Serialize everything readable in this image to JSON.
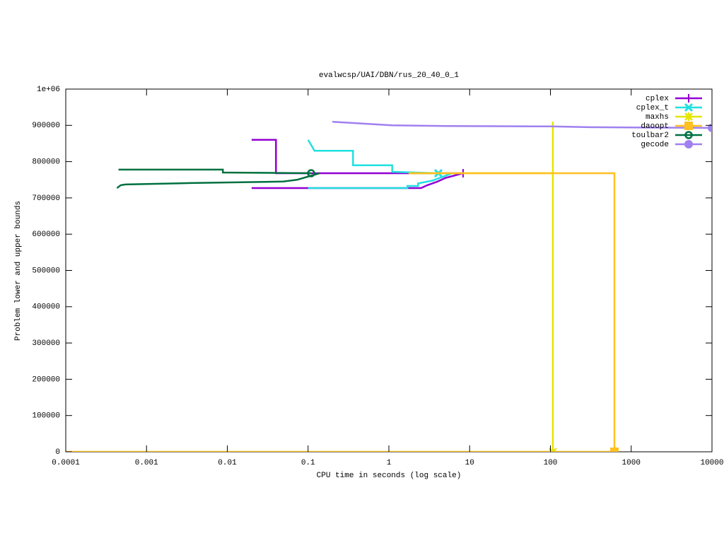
{
  "chart_data": {
    "type": "line",
    "title": "evalwcsp/UAI/DBN/rus_20_40_0_1",
    "x_label": "CPU time in seconds (log scale)",
    "y_label": "Problem lower and upper bounds",
    "xscale": "log",
    "xlim": [
      0.0001,
      10000
    ],
    "xticks": [
      0.0001,
      0.001,
      0.01,
      0.1,
      1,
      10,
      100,
      1000,
      10000
    ],
    "ylim": [
      0,
      1000000
    ],
    "yticks": [
      0,
      100000,
      200000,
      300000,
      400000,
      500000,
      600000,
      700000,
      800000,
      900000,
      {
        "value": 1000000,
        "label": "1e+06"
      }
    ],
    "legend": "top-right",
    "series": [
      {
        "name": "cplex",
        "color": "#9400d3",
        "marker": "plus",
        "x": [
          0.02,
          0.04,
          0.04,
          8.3,
          null,
          0.02,
          2.5,
          3,
          4,
          5,
          8.3
        ],
        "values": [
          860000,
          860000,
          768000,
          768000,
          null,
          727000,
          727000,
          735000,
          745000,
          755000,
          768000
        ]
      },
      {
        "name": "cplex_t",
        "color": "#22e0e0",
        "marker": "cross",
        "x": [
          0.1,
          0.1,
          0.12,
          0.12,
          0.36,
          0.36,
          1.1,
          1.1,
          4.1,
          null,
          0.1,
          1.7,
          1.7,
          2.3,
          2.3,
          3.5,
          6.1
        ],
        "values": [
          860000,
          860000,
          830000,
          830000,
          830000,
          790000,
          790000,
          772000,
          768000,
          null,
          727000,
          727000,
          733000,
          733000,
          740000,
          748000,
          768000
        ]
      },
      {
        "name": "maxhs",
        "color": "#e5e500",
        "marker": "star",
        "x": [
          107,
          107,
          null,
          1.76,
          107
        ],
        "values": [
          910000,
          0,
          null,
          768000,
          768000
        ]
      },
      {
        "name": "daoopt",
        "color": "#ffc020",
        "marker": "square",
        "x": [
          1.76,
          620,
          620,
          null,
          0.0001,
          620
        ],
        "values": [
          768000,
          768000,
          0,
          null,
          0,
          0
        ]
      },
      {
        "name": "toulbar2",
        "color": "#007040",
        "marker": "circle",
        "x": [
          0.00045,
          0.0088,
          0.0088,
          0.109,
          null,
          0.00043,
          0.00048,
          0.00055,
          0.0035,
          0.049,
          0.073,
          0.139
        ],
        "values": [
          778000,
          778000,
          770000,
          768000,
          null,
          727000,
          735000,
          737000,
          741000,
          745000,
          750000,
          768000
        ]
      },
      {
        "name": "gecode",
        "color": "#a080f0",
        "marker": "dot",
        "x": [
          0.2,
          1.1,
          5.2,
          100,
          300,
          10000
        ],
        "values": [
          910000,
          900000,
          898000,
          897000,
          895000,
          893000
        ]
      }
    ]
  }
}
